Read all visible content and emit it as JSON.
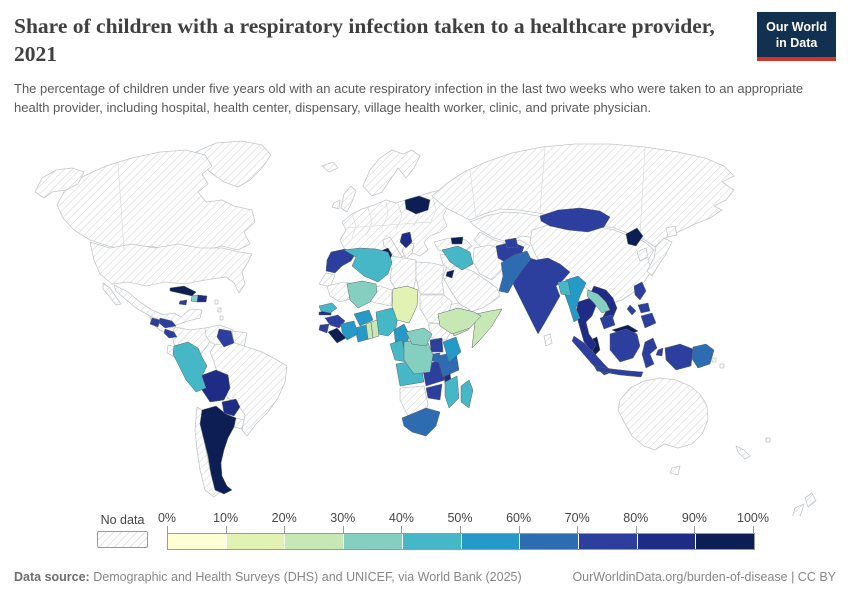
{
  "header": {
    "title": "Share of children with a respiratory infection taken to a healthcare provider, 2021",
    "subtitle": "The percentage of children under five years old with an acute respiratory infection in the last two weeks who were taken to an appropriate health provider, including hospital, health center, dispensary, village health worker, clinic, and private physician.",
    "logo": {
      "line1": "Our World",
      "line2": "in Data"
    }
  },
  "legend": {
    "no_data_label": "No data",
    "tick_labels": [
      "0%",
      "10%",
      "20%",
      "30%",
      "40%",
      "50%",
      "60%",
      "70%",
      "80%",
      "90%",
      "100%"
    ]
  },
  "footer": {
    "source_label": "Data source:",
    "source_text": "Demographic and Health Surveys (DHS) and UNICEF, via World Bank (2025)",
    "link_text": "OurWorldinData.org/burden-of-disease | CC BY"
  },
  "chart_data": {
    "type": "choropleth_map",
    "title": "Share of children with a respiratory infection taken to a healthcare provider",
    "year": 2021,
    "unit": "%",
    "projection": "world",
    "no_data_style": "hatched",
    "bins": [
      "0-10%",
      "10-20%",
      "20-30%",
      "30-40%",
      "40-50%",
      "50-60%",
      "60-70%",
      "70-80%",
      "80-90%",
      "90-100%"
    ],
    "bin_colors": [
      "#feffd4",
      "#e2f2b3",
      "#c7e8b4",
      "#85cfc0",
      "#46b7c6",
      "#2599c7",
      "#2d6cb1",
      "#2c3e9e",
      "#1f2c85",
      "#0d1e55"
    ],
    "countries": [
      {
        "name": "Belarus",
        "bin": "90-100%"
      },
      {
        "name": "Tunisia",
        "bin": "90-100%"
      },
      {
        "name": "Cuba",
        "bin": "90-100%"
      },
      {
        "name": "Argentina",
        "bin": "90-100%"
      },
      {
        "name": "North Korea",
        "bin": "90-100%"
      },
      {
        "name": "Armenia",
        "bin": "90-100%"
      },
      {
        "name": "Jordan",
        "bin": "90-100%"
      },
      {
        "name": "Malaysia",
        "bin": "90-100%"
      },
      {
        "name": "Liberia",
        "bin": "90-100%"
      },
      {
        "name": "Serbia",
        "bin": "80-90%"
      },
      {
        "name": "Thailand",
        "bin": "80-90%"
      },
      {
        "name": "Vietnam",
        "bin": "80-90%"
      },
      {
        "name": "Nepal",
        "bin": "80-90%"
      },
      {
        "name": "Bolivia",
        "bin": "80-90%"
      },
      {
        "name": "Paraguay",
        "bin": "80-90%"
      },
      {
        "name": "Malawi",
        "bin": "80-90%"
      },
      {
        "name": "Dominican Republic",
        "bin": "80-90%"
      },
      {
        "name": "Gambia",
        "bin": "80-90%"
      },
      {
        "name": "Morocco",
        "bin": "70-80%"
      },
      {
        "name": "Mongolia",
        "bin": "70-80%"
      },
      {
        "name": "Afghanistan",
        "bin": "70-80%"
      },
      {
        "name": "India",
        "bin": "70-80%"
      },
      {
        "name": "Philippines",
        "bin": "70-80%"
      },
      {
        "name": "Indonesia",
        "bin": "70-80%"
      },
      {
        "name": "Cambodia",
        "bin": "70-80%"
      },
      {
        "name": "Guinea",
        "bin": "70-80%"
      },
      {
        "name": "Sierra Leone",
        "bin": "70-80%"
      },
      {
        "name": "Uganda",
        "bin": "70-80%"
      },
      {
        "name": "Zambia",
        "bin": "70-80%"
      },
      {
        "name": "Zimbabwe",
        "bin": "70-80%"
      },
      {
        "name": "Honduras",
        "bin": "70-80%"
      },
      {
        "name": "Guatemala",
        "bin": "70-80%"
      },
      {
        "name": "Costa Rica",
        "bin": "70-80%"
      },
      {
        "name": "Guyana",
        "bin": "70-80%"
      },
      {
        "name": "Jamaica",
        "bin": "70-80%"
      },
      {
        "name": "Tajikistan",
        "bin": "70-80%"
      },
      {
        "name": "Pakistan",
        "bin": "60-70%"
      },
      {
        "name": "Papua New Guinea",
        "bin": "60-70%"
      },
      {
        "name": "Tanzania",
        "bin": "60-70%"
      },
      {
        "name": "South Africa",
        "bin": "60-70%"
      },
      {
        "name": "Rwanda",
        "bin": "60-70%"
      },
      {
        "name": "Myanmar",
        "bin": "50-60%"
      },
      {
        "name": "Kenya",
        "bin": "50-60%"
      },
      {
        "name": "Cameroon",
        "bin": "50-60%"
      },
      {
        "name": "Ghana",
        "bin": "50-60%"
      },
      {
        "name": "Cote dIvoire",
        "bin": "50-60%"
      },
      {
        "name": "Burkina Faso",
        "bin": "50-60%"
      },
      {
        "name": "Algeria",
        "bin": "40-50%"
      },
      {
        "name": "Senegal",
        "bin": "40-50%"
      },
      {
        "name": "Nigeria",
        "bin": "40-50%"
      },
      {
        "name": "Madagascar",
        "bin": "40-50%"
      },
      {
        "name": "Mozambique",
        "bin": "40-50%"
      },
      {
        "name": "Peru",
        "bin": "40-50%"
      },
      {
        "name": "Iraq",
        "bin": "40-50%"
      },
      {
        "name": "Gabon",
        "bin": "40-50%"
      },
      {
        "name": "Angola",
        "bin": "40-50%"
      },
      {
        "name": "Bangladesh",
        "bin": "40-50%"
      },
      {
        "name": "Mali",
        "bin": "30-40%"
      },
      {
        "name": "Democratic Republic of Congo",
        "bin": "30-40%"
      },
      {
        "name": "Central African Republic",
        "bin": "30-40%"
      },
      {
        "name": "Haiti",
        "bin": "30-40%"
      },
      {
        "name": "Laos",
        "bin": "30-40%"
      },
      {
        "name": "Ethiopia",
        "bin": "20-30%"
      },
      {
        "name": "Somalia",
        "bin": "20-30%"
      },
      {
        "name": "Yemen",
        "bin": "20-30%"
      },
      {
        "name": "Togo",
        "bin": "20-30%"
      },
      {
        "name": "Benin",
        "bin": "20-30%"
      },
      {
        "name": "Chad",
        "bin": "10-20%"
      }
    ],
    "no_data_regions": [
      "Greenland",
      "Canada",
      "Alaska",
      "United States",
      "Mexico",
      "Central America",
      "Colombia",
      "Venezuela",
      "Guyanas",
      "Brazil",
      "Ecuador",
      "Chile",
      "Uruguay",
      "Iceland",
      "United Kingdom",
      "Ireland",
      "Scandinavia",
      "Europe",
      "Italy",
      "Greece",
      "Russia",
      "Kazakhstan",
      "Central Asia",
      "Iran",
      "Saudi Arabia",
      "Turkey",
      "Syria",
      "Eritrea",
      "South Sudan",
      "Western Sahara",
      "Mauritania",
      "Niger",
      "Libya",
      "Egypt",
      "Sudan",
      "Namibia Botswana",
      "China",
      "Japan",
      "Hokkaido",
      "South Korea",
      "Sri Lanka",
      "Australia",
      "Tasmania",
      "New Zealand",
      "New Caledonia",
      "Caribbean Islands",
      "Pacific Islands"
    ]
  }
}
